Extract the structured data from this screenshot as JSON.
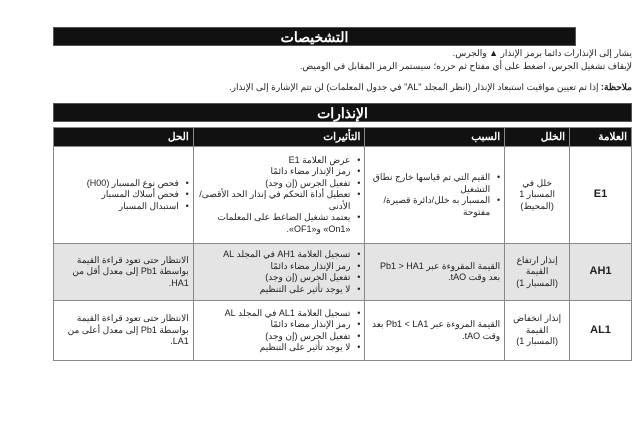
{
  "diagnostics": {
    "title": "التشخيصات",
    "line1a": "يشار إلى الإنذارات دائما برمز الإنذار",
    "line1b": "والجرس.",
    "line2": "لإيقاف تشغيل الجرس، اضغط على أي مفتاح ثم حرره؛ سيستمر الرمز المقابل في الوميض.",
    "note_label": "ملاحظة:",
    "note": " إذا تم تعيين مواقيت استبعاد الإنذار (انظر المجلد \"AL\" في جدول المعلمات) لن تتم الإشارة إلى الإنذار."
  },
  "alarms": {
    "title": "الإنذارات",
    "headers": [
      "العلامة",
      "الخلل",
      "السبب",
      "التأثيرات",
      "الحل"
    ],
    "rows": [
      {
        "code": "E1",
        "fault": "خلل في المسبار 1 (المحيط)",
        "causes": [
          "القيم التي تم قياسها خارج نطاق التشغيل",
          "المسبار به خلل/دائرة قصيرة/ مفتوحة"
        ],
        "effects": [
          "عرض العلامة E1",
          "رمز الإنذار مضاء دائمًا",
          "تفعيل الجرس (إن وجد)",
          "تعطيل أداة التحكم في إنذار الحد الأقصى/ الأدنى",
          "يعتمد تشغيل الضاغط على المعلمات «On1» و«OF1»."
        ],
        "solutions": [
          "فحص نوع المسبار (H00)",
          "فحص أسلاك المسبار",
          "استبدال المسبار"
        ]
      },
      {
        "code": "AH1",
        "fault": "إنذار ارتفاع القيمة (المسبار 1)",
        "cause": "القيمة المقروءة عبر Pb1 > HA1 بعد وقت tAO.",
        "effects": [
          "تسجيل العلامة AH1 في المجلد AL",
          "رمز الإنذار مضاء دائمًا",
          "تفعيل الجرس (إن وجد)",
          "لا يوجد تأثير على التنظيم"
        ],
        "solution": "الانتظار حتى تعود قراءة القيمة بواسطة Pb1 إلى معدل أقل من HA1."
      },
      {
        "code": "AL1",
        "fault": "إنذار انخفاض القيمة (المسبار 1)",
        "cause": "القيمة المروءة عبر Pb1 < LA1 بعد وقت tAO.",
        "effects": [
          "تسجيل العلامة AL1 في المجلد AL",
          "رمز الإنذار مضاء دائمًا",
          "تفعيل الجرس (إن وجد)",
          "لا يوجد تأثير على التنظيم"
        ],
        "solution": "الانتظار حتى تعود قراءة القيمة بواسطة Pb1 إلى معدل أعلى من LA1."
      }
    ]
  }
}
